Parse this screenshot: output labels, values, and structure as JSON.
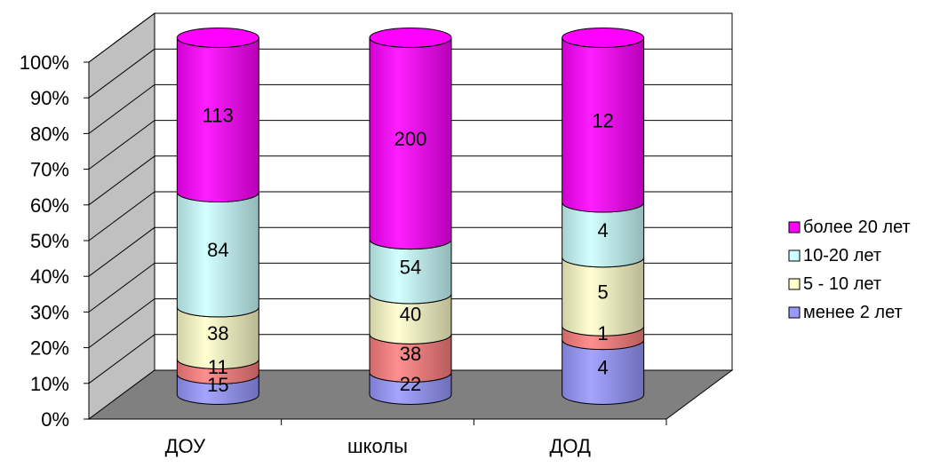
{
  "chart_data": {
    "type": "bar",
    "stacked": "percent",
    "three_d": true,
    "categories": [
      "ДОУ",
      "школы",
      "ДОД"
    ],
    "series": [
      {
        "name": "менее 2 лет",
        "color": "#9999FF",
        "values": [
          15,
          22,
          4
        ]
      },
      {
        "name": "",
        "color": "#FF8080",
        "values": [
          11,
          38,
          1
        ]
      },
      {
        "name": "5 - 10 лет",
        "color": "#FFFFCC",
        "values": [
          38,
          40,
          5
        ]
      },
      {
        "name": "10-20 лет",
        "color": "#CCFFFF",
        "values": [
          84,
          54,
          4
        ]
      },
      {
        "name": "более 20 лет",
        "color": "#FF00FF",
        "values": [
          113,
          200,
          12
        ]
      }
    ],
    "y_ticks": [
      "0%",
      "10%",
      "20%",
      "30%",
      "40%",
      "50%",
      "60%",
      "70%",
      "80%",
      "90%",
      "100%"
    ],
    "ylim": [
      0,
      100
    ],
    "grid": true,
    "legend_position": "right",
    "legend_order": [
      "более 20 лет",
      "10-20 лет",
      "5 - 10 лет",
      "менее 2 лет"
    ]
  }
}
